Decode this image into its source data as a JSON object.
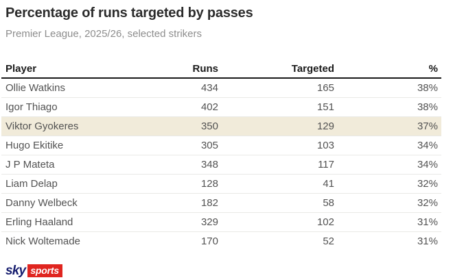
{
  "title": "Percentage of runs targeted by passes",
  "subtitle": "Premier League, 2025/26, selected strikers",
  "table": {
    "columns": {
      "player": "Player",
      "runs": "Runs",
      "targeted": "Targeted",
      "pct": "%"
    },
    "rows": [
      {
        "player": "Ollie Watkins",
        "runs": "434",
        "targeted": "165",
        "pct": "38%",
        "highlight": false
      },
      {
        "player": "Igor Thiago",
        "runs": "402",
        "targeted": "151",
        "pct": "38%",
        "highlight": false
      },
      {
        "player": "Viktor Gyokeres",
        "runs": "350",
        "targeted": "129",
        "pct": "37%",
        "highlight": true
      },
      {
        "player": "Hugo Ekitike",
        "runs": "305",
        "targeted": "103",
        "pct": "34%",
        "highlight": false
      },
      {
        "player": "J P Mateta",
        "runs": "348",
        "targeted": "117",
        "pct": "34%",
        "highlight": false
      },
      {
        "player": "Liam Delap",
        "runs": "128",
        "targeted": "41",
        "pct": "32%",
        "highlight": false
      },
      {
        "player": "Danny Welbeck",
        "runs": "182",
        "targeted": "58",
        "pct": "32%",
        "highlight": false
      },
      {
        "player": "Erling Haaland",
        "runs": "329",
        "targeted": "102",
        "pct": "31%",
        "highlight": false
      },
      {
        "player": "Nick Woltemade",
        "runs": "170",
        "targeted": "52",
        "pct": "31%",
        "highlight": false
      }
    ]
  },
  "chart_data": {
    "type": "table",
    "title": "Percentage of runs targeted by passes",
    "subtitle": "Premier League, 2025/26, selected strikers",
    "columns": [
      "Player",
      "Runs",
      "Targeted",
      "%"
    ],
    "rows": [
      [
        "Ollie Watkins",
        434,
        165,
        "38%"
      ],
      [
        "Igor Thiago",
        402,
        151,
        "38%"
      ],
      [
        "Viktor Gyokeres",
        350,
        129,
        "37%"
      ],
      [
        "Hugo Ekitike",
        305,
        103,
        "34%"
      ],
      [
        "J P Mateta",
        348,
        117,
        "34%"
      ],
      [
        "Liam Delap",
        128,
        41,
        "32%"
      ],
      [
        "Danny Welbeck",
        182,
        58,
        "32%"
      ],
      [
        "Erling Haaland",
        329,
        102,
        "31%"
      ],
      [
        "Nick Woltemade",
        170,
        52,
        "31%"
      ]
    ],
    "highlighted_row": "Viktor Gyokeres"
  },
  "colors": {
    "highlight_row_bg": "#f1ebda",
    "header_rule": "#191919",
    "row_divider": "#e9e9e6",
    "logo_navy": "#171e6f",
    "logo_red": "#e0251f"
  },
  "branding": {
    "sky": "sky",
    "sports": "sports"
  }
}
